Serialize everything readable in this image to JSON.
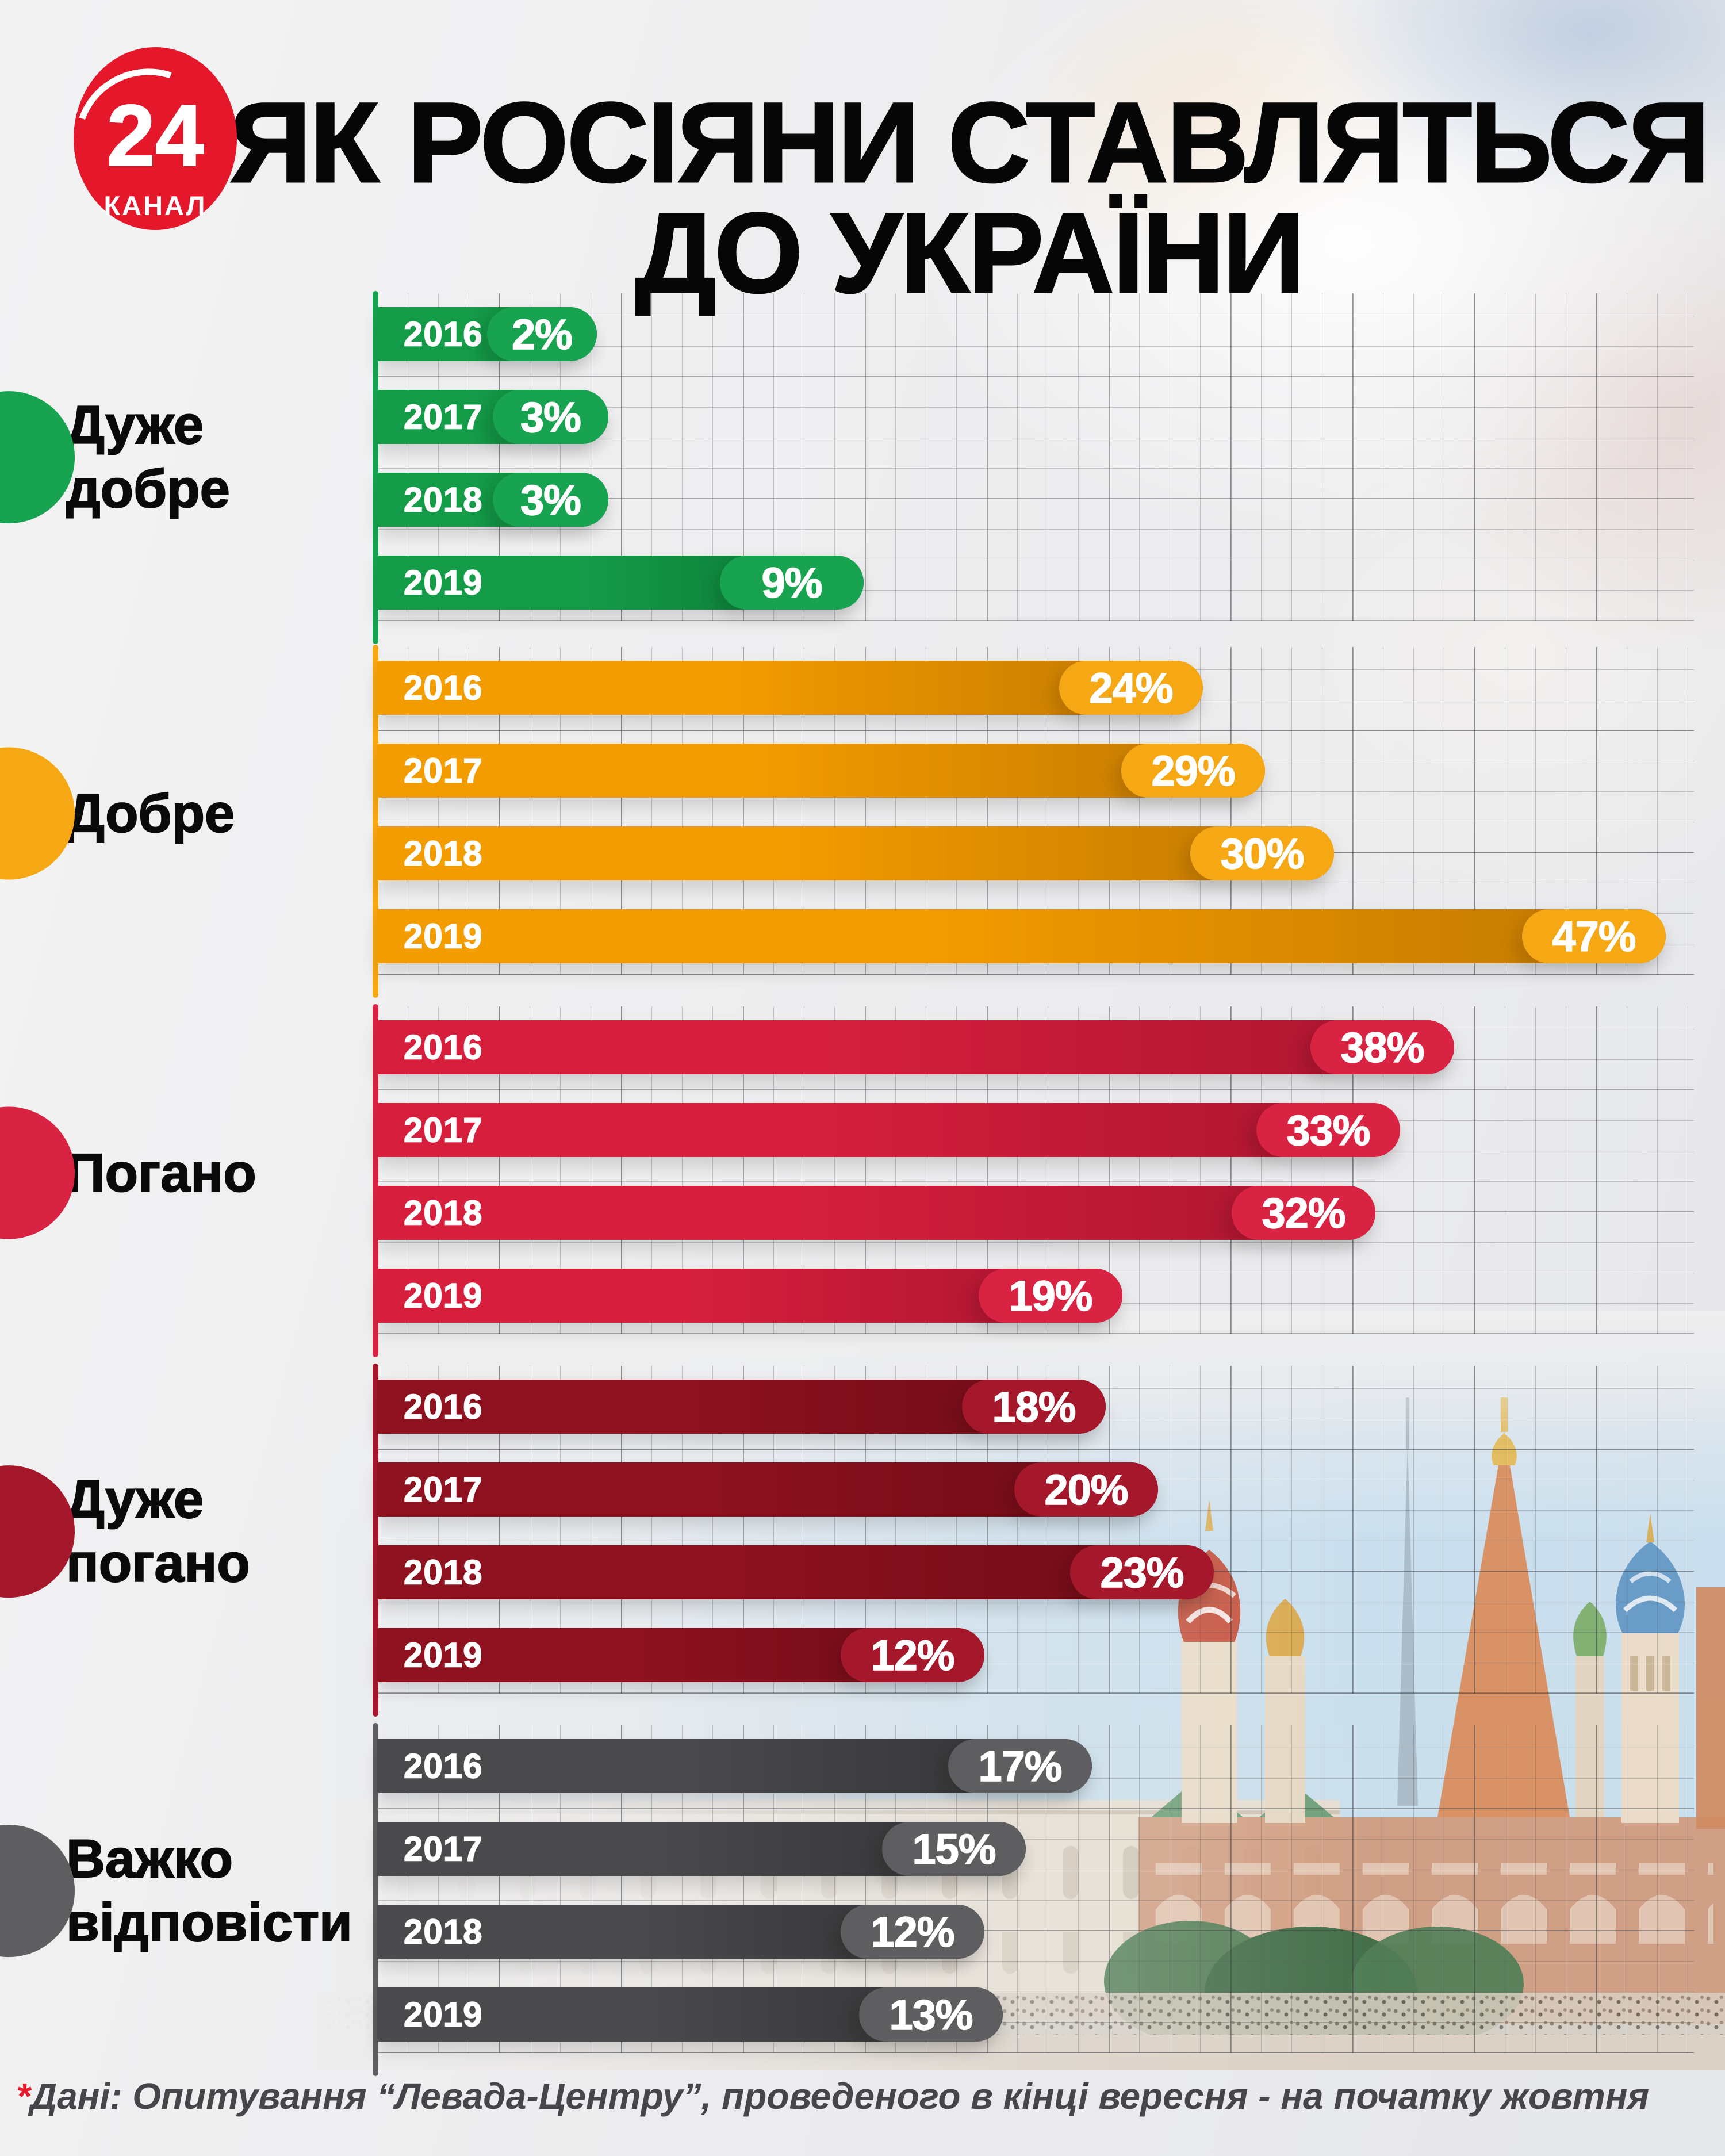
{
  "logo": {
    "number": "24",
    "caption": "КАНАЛ",
    "color": "#e5182b"
  },
  "title": {
    "line1": "ЯК РОСІЯНИ СТАВЛЯТЬСЯ",
    "line2": "ДО УКРАЇНИ"
  },
  "footer": {
    "asterisk": "*",
    "text": "Дані: Опитування “Левада-Центру”, проведеного в кінці вересня - на початку жовтня"
  },
  "chart_data": {
    "type": "bar",
    "orientation": "horizontal",
    "grid": true,
    "unit": "%",
    "title": "ЯК РОСІЯНИ СТАВЛЯТЬСЯ ДО УКРАЇНИ",
    "categories": [
      "2016",
      "2017",
      "2018",
      "2019"
    ],
    "series": [
      {
        "name": "Дуже добре",
        "label_lines": [
          "Дуже",
          "добре"
        ],
        "values": [
          2,
          3,
          3,
          9
        ],
        "value_labels": [
          "2%",
          "3%",
          "3%",
          "9%"
        ],
        "colors": {
          "base": "#149b48",
          "dark": "#0b7434",
          "cap": "#18a350"
        }
      },
      {
        "name": "Добре",
        "label_lines": [
          "Добре"
        ],
        "values": [
          24,
          29,
          30,
          47
        ],
        "value_labels": [
          "24%",
          "29%",
          "30%",
          "47%"
        ],
        "colors": {
          "base": "#f39c00",
          "dark": "#c07700",
          "cap": "#f6a714"
        }
      },
      {
        "name": "Погано",
        "label_lines": [
          "Погано"
        ],
        "values": [
          38,
          33,
          32,
          19
        ],
        "value_labels": [
          "38%",
          "33%",
          "32%",
          "19%"
        ],
        "colors": {
          "base": "#d51f3d",
          "dark": "#a8142e",
          "cap": "#d82442"
        }
      },
      {
        "name": "Дуже погано",
        "label_lines": [
          "Дуже",
          "погано"
        ],
        "values": [
          18,
          20,
          23,
          12
        ],
        "value_labels": [
          "18%",
          "20%",
          "23%",
          "12%"
        ],
        "colors": {
          "base": "#8e1120",
          "dark": "#6d0c17",
          "cap": "#a5182c"
        }
      },
      {
        "name": "Важко відповісти",
        "label_lines": [
          "Важко",
          "відповісти"
        ],
        "values": [
          17,
          15,
          12,
          13
        ],
        "value_labels": [
          "17%",
          "15%",
          "12%",
          "13%"
        ],
        "colors": {
          "base": "#4a4a4c",
          "dark": "#313133",
          "cap": "#5e5e60"
        }
      }
    ],
    "source_note": "Дані: Опитування “Левада-Центру”, проведеного в кінці вересня - на початку жовтня"
  }
}
